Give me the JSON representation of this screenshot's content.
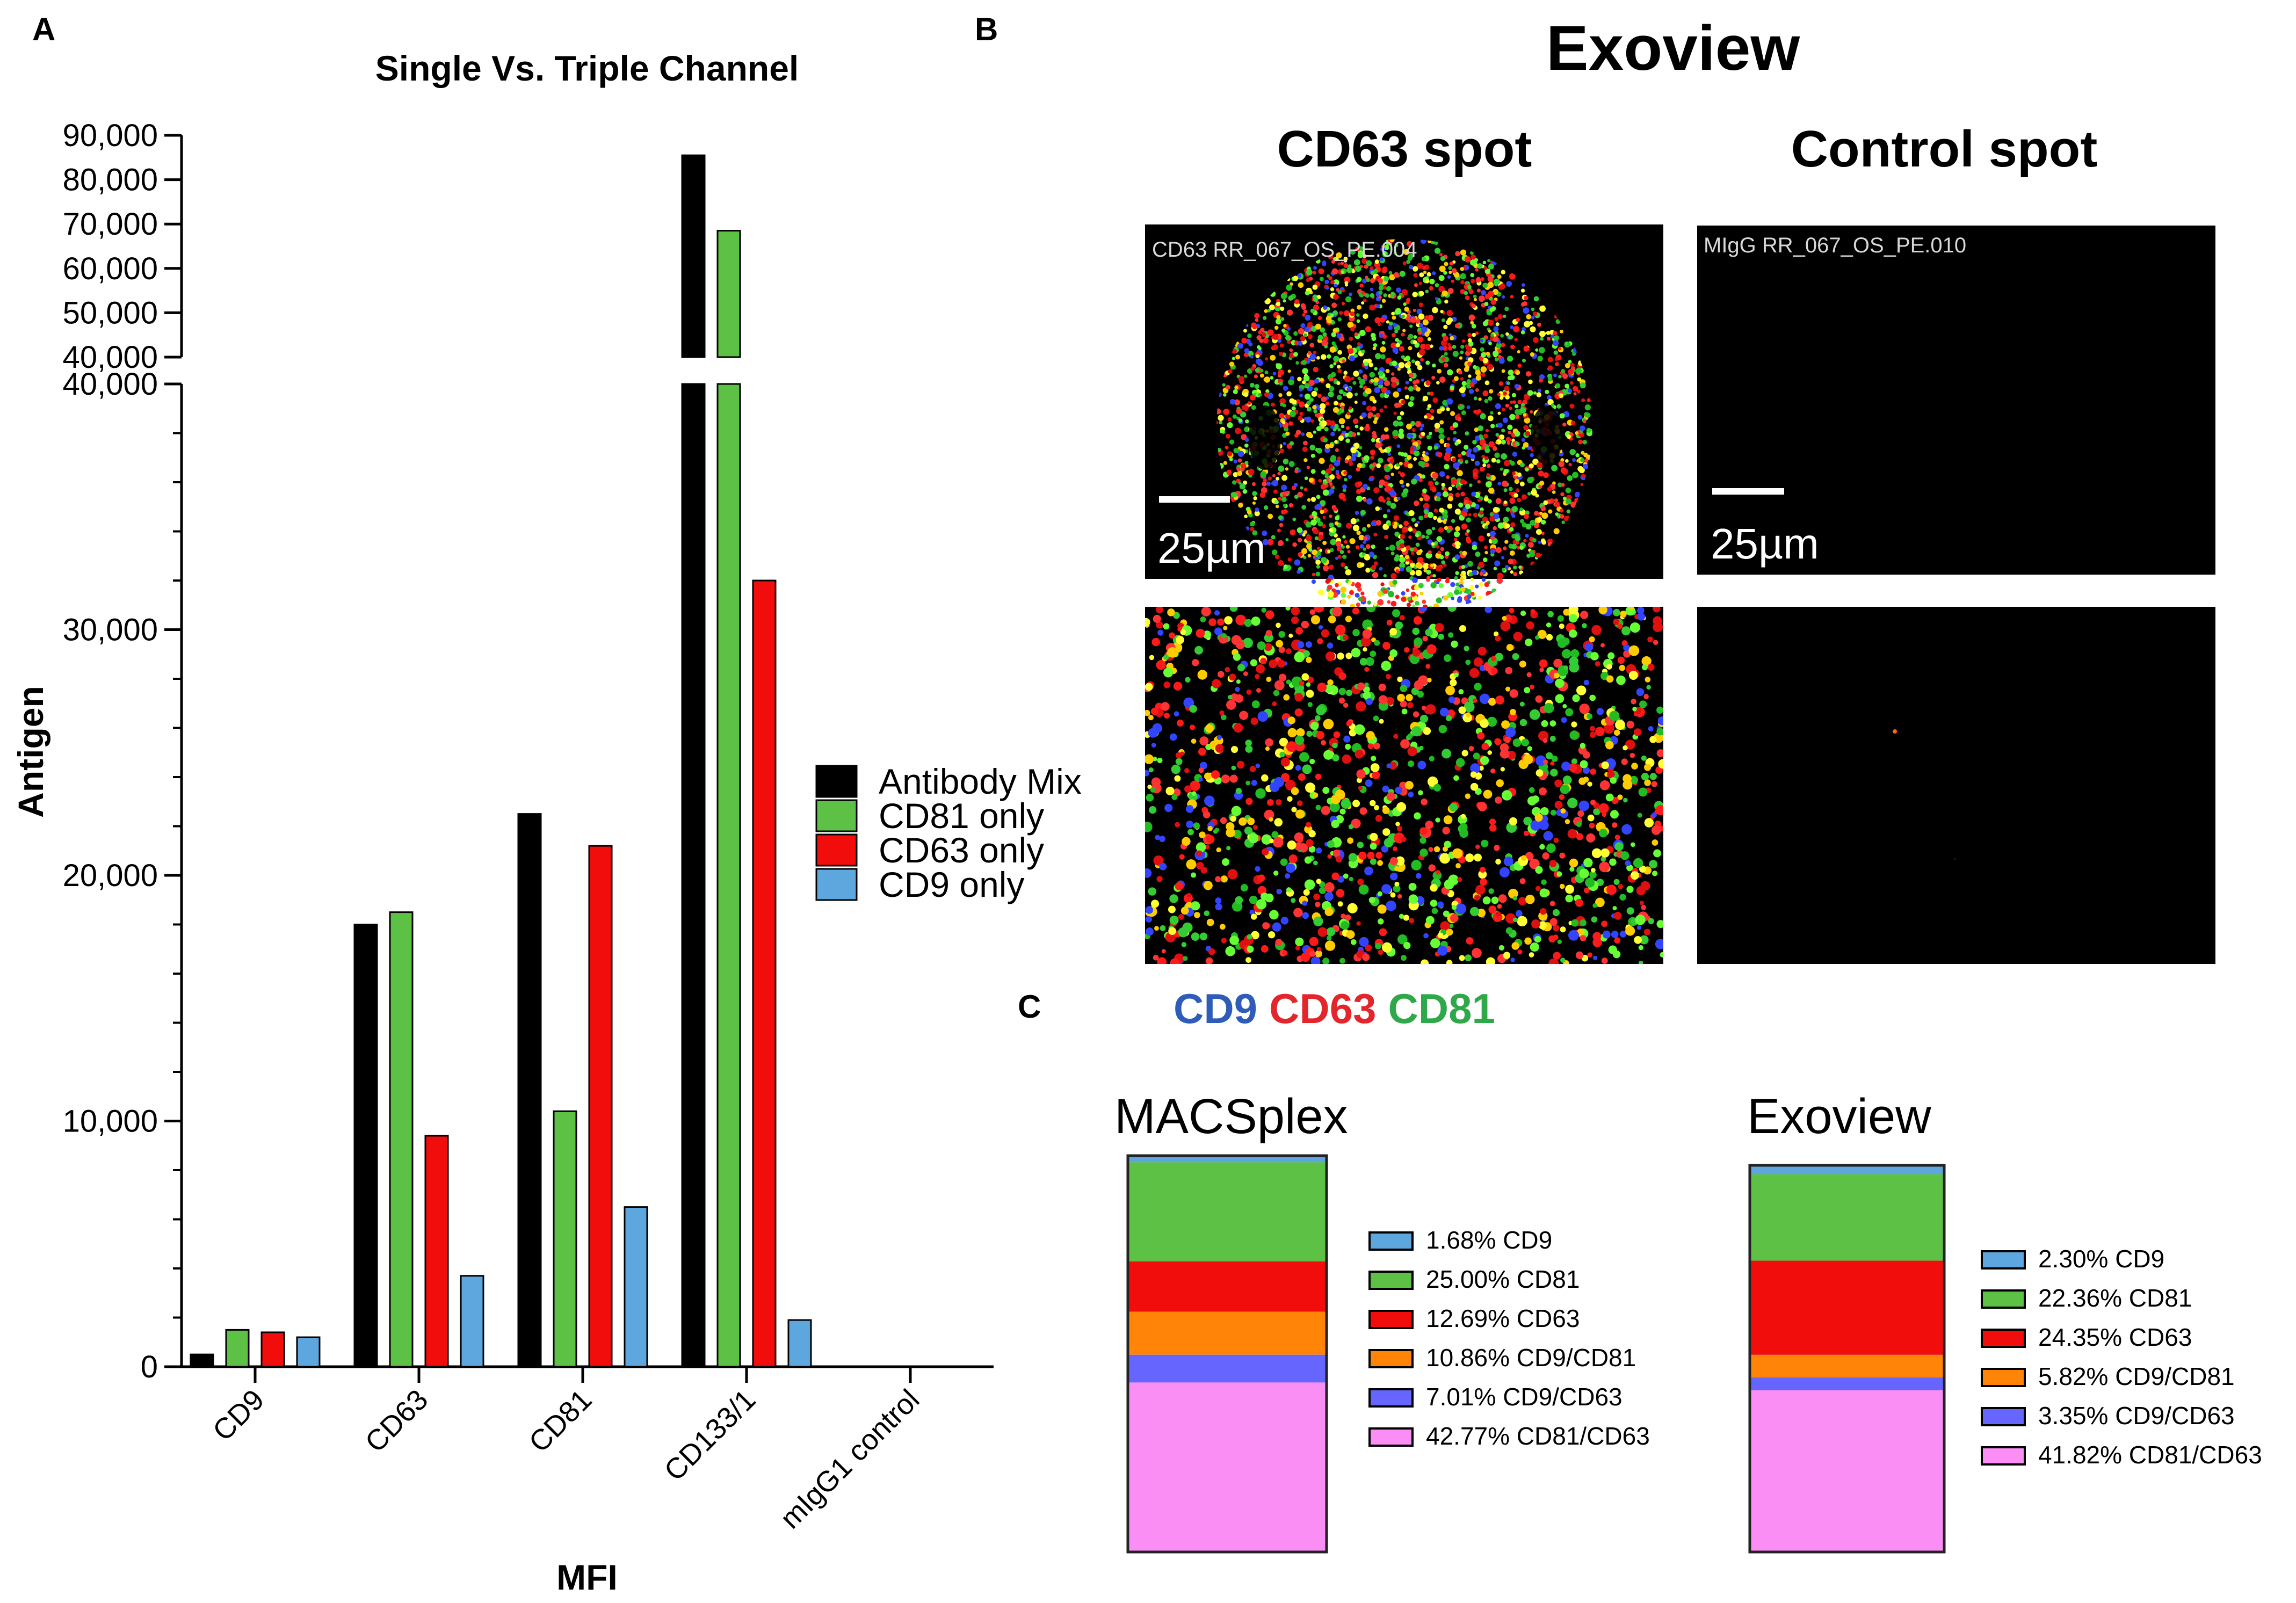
{
  "panels": {
    "a": "A",
    "b": "B",
    "c": "C"
  },
  "chart_data": [
    {
      "type": "bar",
      "title": "Single Vs. Triple Channel",
      "xlabel": "MFI",
      "ylabel": "Antigen",
      "categories": [
        "CD9",
        "CD63",
        "CD81",
        "CD133/1",
        "mIgG1 control"
      ],
      "series": [
        {
          "name": "Antibody Mix",
          "color": "#000000",
          "values": [
            500,
            18000,
            22500,
            85500,
            0
          ]
        },
        {
          "name": "CD81 only",
          "color": "#5dc145",
          "values": [
            1500,
            18500,
            10400,
            68500,
            0
          ]
        },
        {
          "name": "CD63 only",
          "color": "#f20d0d",
          "values": [
            1400,
            9400,
            21200,
            32000,
            0
          ]
        },
        {
          "name": "CD9 only",
          "color": "#5ea6de",
          "values": [
            1200,
            3700,
            6500,
            1900,
            0
          ]
        }
      ],
      "y_axis_lower": {
        "range": [
          0,
          40000
        ],
        "ticks": [
          "0",
          "10,000",
          "20,000",
          "30,000",
          "40,000"
        ]
      },
      "y_axis_upper": {
        "range": [
          40000,
          90000
        ],
        "ticks": [
          "40,000",
          "50,000",
          "60,000",
          "70,000",
          "80,000",
          "90,000"
        ]
      },
      "legend_position": "right"
    },
    {
      "type": "bar",
      "subtype": "stacked-100",
      "title": "MACSplex",
      "segments": [
        {
          "label": "CD9",
          "value_text": "1.68%",
          "value": 1.68,
          "color": "#5ea6de"
        },
        {
          "label": "CD81",
          "value_text": "25.00%",
          "value": 25.0,
          "color": "#5dc145"
        },
        {
          "label": "CD63",
          "value_text": "12.69%",
          "value": 12.69,
          "color": "#f20d0d"
        },
        {
          "label": "CD9/CD81",
          "value_text": "10.86%",
          "value": 10.86,
          "color": "#ff8408"
        },
        {
          "label": "CD9/CD63",
          "value_text": "7.01%",
          "value": 7.01,
          "color": "#6666ff"
        },
        {
          "label": "CD81/CD63",
          "value_text": "42.77%",
          "value": 42.77,
          "color": "#fb8ef5"
        }
      ]
    },
    {
      "type": "bar",
      "subtype": "stacked-100",
      "title": "Exoview",
      "segments": [
        {
          "label": "CD9",
          "value_text": "2.30%",
          "value": 2.3,
          "color": "#5ea6de"
        },
        {
          "label": "CD81",
          "value_text": "22.36%",
          "value": 22.36,
          "color": "#5dc145"
        },
        {
          "label": "CD63",
          "value_text": "24.35%",
          "value": 24.35,
          "color": "#f20d0d"
        },
        {
          "label": "CD9/CD81",
          "value_text": "5.82%",
          "value": 5.82,
          "color": "#ff8408"
        },
        {
          "label": "CD9/CD63",
          "value_text": "3.35%",
          "value": 3.35,
          "color": "#6666ff"
        },
        {
          "label": "CD81/CD63",
          "value_text": "41.82%",
          "value": 41.82,
          "color": "#fb8ef5"
        }
      ]
    }
  ],
  "panel_b": {
    "title": "Exoview",
    "col_left": "CD63 spot",
    "col_right": "Control spot",
    "caption_left": "CD63 RR_067_OS_PE.004",
    "caption_right": "MIgG RR_067_OS_PE.010",
    "scale_label": "25µm",
    "channels": [
      {
        "name": "CD9",
        "color": "#2e5cb8"
      },
      {
        "name": "CD63",
        "color": "#e3262b"
      },
      {
        "name": "CD81",
        "color": "#2fa84a"
      }
    ]
  }
}
